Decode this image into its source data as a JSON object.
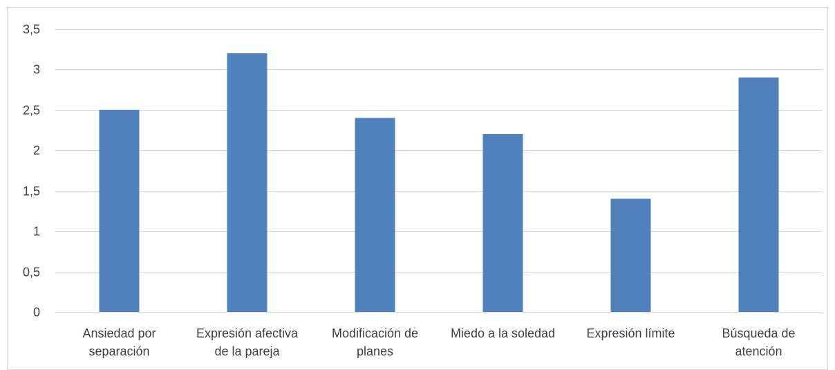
{
  "chart_data": {
    "type": "bar",
    "title": "",
    "xlabel": "",
    "ylabel": "",
    "categories": [
      [
        "Ansiedad por",
        "separación"
      ],
      [
        "Expresión afectiva",
        "de la pareja"
      ],
      [
        "Modificación de",
        "planes"
      ],
      [
        "Miedo a la soledad"
      ],
      [
        "Expresión límite"
      ],
      [
        "Búsqueda de",
        "atención"
      ]
    ],
    "values": [
      2.5,
      3.2,
      2.4,
      2.2,
      1.4,
      2.9
    ],
    "ylim": [
      0,
      3.5
    ],
    "yticks": [
      0,
      0.5,
      1,
      1.5,
      2,
      2.5,
      3,
      3.5
    ],
    "ytick_labels": [
      "0",
      "0,5",
      "1",
      "1,5",
      "2",
      "2,5",
      "3",
      "3,5"
    ],
    "grid": true,
    "legend": "none",
    "colors": {
      "bar": "#4f81bd",
      "grid": "#d9d9d9",
      "text": "#404040",
      "frame": "#d9d9d9"
    }
  }
}
